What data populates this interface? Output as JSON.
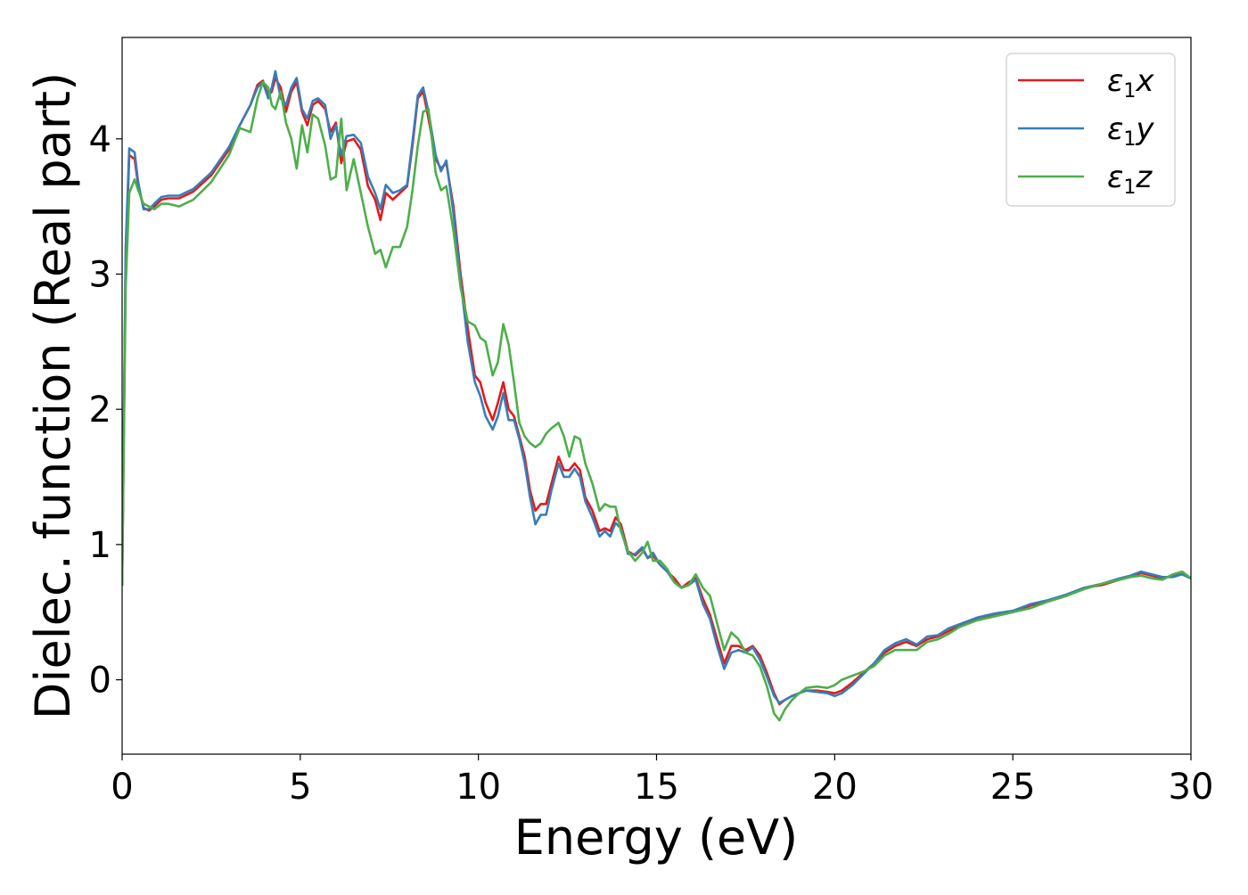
{
  "chart_data": {
    "type": "line",
    "xlabel": "Energy (eV)",
    "ylabel": "Dielec. function (Real part)",
    "xlim": [
      0,
      30
    ],
    "ylim": [
      -0.55,
      4.75
    ],
    "xticks": [
      0,
      5,
      10,
      15,
      20,
      25,
      30
    ],
    "yticks": [
      0,
      1,
      2,
      3,
      4
    ],
    "grid": false,
    "legend_position": "top-right",
    "series": [
      {
        "name": "ε1x",
        "legend": {
          "base": "ε",
          "sub": "1",
          "suffix": "x"
        },
        "color": "#e41a1c",
        "x": [
          0,
          0.1,
          0.2,
          0.35,
          0.45,
          0.6,
          0.75,
          0.9,
          1.1,
          1.3,
          1.6,
          2.0,
          2.5,
          3.0,
          3.3,
          3.6,
          3.8,
          3.95,
          4.1,
          4.2,
          4.3,
          4.45,
          4.6,
          4.75,
          4.9,
          5.05,
          5.2,
          5.35,
          5.5,
          5.7,
          5.85,
          6.0,
          6.15,
          6.3,
          6.5,
          6.7,
          6.9,
          7.1,
          7.25,
          7.4,
          7.6,
          7.8,
          8.0,
          8.15,
          8.3,
          8.45,
          8.6,
          8.8,
          8.95,
          9.1,
          9.3,
          9.5,
          9.7,
          9.9,
          10.05,
          10.2,
          10.4,
          10.55,
          10.7,
          10.85,
          11.0,
          11.15,
          11.3,
          11.45,
          11.6,
          11.75,
          11.9,
          12.05,
          12.25,
          12.4,
          12.55,
          12.7,
          12.85,
          13.0,
          13.2,
          13.4,
          13.55,
          13.7,
          13.85,
          14.0,
          14.2,
          14.4,
          14.6,
          14.75,
          14.9,
          15.1,
          15.3,
          15.5,
          15.7,
          15.9,
          16.1,
          16.3,
          16.5,
          16.7,
          16.9,
          17.1,
          17.3,
          17.5,
          17.7,
          17.9,
          18.1,
          18.3,
          18.45,
          18.6,
          18.8,
          19.0,
          19.2,
          19.5,
          19.8,
          20.0,
          20.2,
          20.5,
          20.8,
          21.1,
          21.4,
          21.7,
          22.0,
          22.3,
          22.6,
          22.9,
          23.2,
          23.5,
          24.0,
          24.5,
          25.0,
          25.5,
          26.0,
          26.5,
          27.0,
          27.5,
          28.0,
          28.3,
          28.6,
          28.9,
          29.2,
          29.5,
          29.75,
          30.0
        ],
        "values": [
          0.7,
          3.1,
          3.88,
          3.85,
          3.66,
          3.49,
          3.47,
          3.5,
          3.55,
          3.56,
          3.56,
          3.61,
          3.73,
          3.92,
          4.1,
          4.25,
          4.4,
          4.43,
          4.32,
          4.35,
          4.45,
          4.38,
          4.2,
          4.35,
          4.42,
          4.2,
          4.1,
          4.25,
          4.28,
          4.22,
          4.05,
          4.12,
          3.82,
          3.98,
          4.0,
          3.92,
          3.65,
          3.55,
          3.4,
          3.6,
          3.55,
          3.6,
          3.65,
          3.95,
          4.3,
          4.35,
          4.15,
          3.85,
          3.78,
          3.82,
          3.5,
          3.0,
          2.6,
          2.25,
          2.2,
          2.05,
          1.92,
          2.05,
          2.2,
          2.0,
          1.95,
          1.8,
          1.65,
          1.4,
          1.25,
          1.3,
          1.3,
          1.45,
          1.65,
          1.55,
          1.55,
          1.6,
          1.55,
          1.35,
          1.25,
          1.1,
          1.12,
          1.1,
          1.2,
          1.15,
          0.95,
          0.92,
          0.97,
          0.9,
          0.92,
          0.85,
          0.8,
          0.75,
          0.68,
          0.72,
          0.75,
          0.6,
          0.48,
          0.3,
          0.12,
          0.25,
          0.25,
          0.22,
          0.25,
          0.18,
          0.05,
          -0.1,
          -0.18,
          -0.15,
          -0.12,
          -0.1,
          -0.08,
          -0.08,
          -0.09,
          -0.1,
          -0.08,
          -0.02,
          0.05,
          0.12,
          0.2,
          0.25,
          0.28,
          0.25,
          0.3,
          0.32,
          0.36,
          0.4,
          0.45,
          0.48,
          0.5,
          0.55,
          0.58,
          0.62,
          0.68,
          0.7,
          0.74,
          0.76,
          0.79,
          0.77,
          0.75,
          0.77,
          0.78,
          0.75
        ],
        "values_note": null
      },
      {
        "name": "ε1y",
        "legend": {
          "base": "ε",
          "sub": "1",
          "suffix": "y"
        },
        "color": "#377eb8",
        "x": [
          0,
          0.1,
          0.2,
          0.35,
          0.45,
          0.6,
          0.75,
          0.9,
          1.1,
          1.3,
          1.6,
          2.0,
          2.5,
          3.0,
          3.3,
          3.6,
          3.8,
          3.95,
          4.1,
          4.2,
          4.3,
          4.45,
          4.6,
          4.75,
          4.9,
          5.05,
          5.2,
          5.35,
          5.5,
          5.7,
          5.85,
          6.0,
          6.15,
          6.3,
          6.5,
          6.7,
          6.9,
          7.1,
          7.25,
          7.4,
          7.6,
          7.8,
          8.0,
          8.15,
          8.3,
          8.45,
          8.6,
          8.8,
          8.95,
          9.1,
          9.3,
          9.5,
          9.7,
          9.9,
          10.05,
          10.2,
          10.4,
          10.55,
          10.7,
          10.85,
          11.0,
          11.15,
          11.3,
          11.45,
          11.6,
          11.75,
          11.9,
          12.05,
          12.25,
          12.4,
          12.55,
          12.7,
          12.85,
          13.0,
          13.2,
          13.4,
          13.55,
          13.7,
          13.85,
          14.0,
          14.2,
          14.4,
          14.6,
          14.75,
          14.9,
          15.1,
          15.3,
          15.5,
          15.7,
          15.9,
          16.1,
          16.3,
          16.5,
          16.7,
          16.9,
          17.1,
          17.3,
          17.5,
          17.7,
          17.9,
          18.1,
          18.3,
          18.45,
          18.6,
          18.8,
          19.0,
          19.2,
          19.5,
          19.8,
          20.0,
          20.2,
          20.5,
          20.8,
          21.1,
          21.4,
          21.7,
          22.0,
          22.3,
          22.6,
          22.9,
          23.2,
          23.5,
          24.0,
          24.5,
          25.0,
          25.5,
          26.0,
          26.5,
          27.0,
          27.5,
          28.0,
          28.3,
          28.6,
          28.9,
          29.2,
          29.5,
          29.75,
          30.0
        ],
        "values": [
          0.7,
          3.2,
          3.93,
          3.9,
          3.68,
          3.48,
          3.48,
          3.52,
          3.57,
          3.58,
          3.58,
          3.63,
          3.75,
          3.94,
          4.1,
          4.25,
          4.38,
          4.42,
          4.3,
          4.38,
          4.5,
          4.3,
          4.25,
          4.38,
          4.45,
          4.22,
          4.15,
          4.28,
          4.3,
          4.25,
          4.0,
          4.1,
          3.88,
          4.02,
          4.03,
          3.97,
          3.72,
          3.6,
          3.48,
          3.66,
          3.6,
          3.62,
          3.66,
          3.98,
          4.32,
          4.38,
          4.2,
          3.88,
          3.76,
          3.84,
          3.45,
          2.95,
          2.5,
          2.2,
          2.1,
          1.95,
          1.85,
          1.95,
          2.12,
          1.92,
          1.92,
          1.78,
          1.6,
          1.35,
          1.15,
          1.22,
          1.22,
          1.4,
          1.6,
          1.5,
          1.5,
          1.56,
          1.5,
          1.32,
          1.2,
          1.06,
          1.1,
          1.06,
          1.16,
          1.12,
          0.93,
          0.93,
          0.98,
          0.9,
          0.94,
          0.85,
          0.8,
          0.72,
          0.68,
          0.7,
          0.74,
          0.56,
          0.45,
          0.25,
          0.08,
          0.2,
          0.22,
          0.2,
          0.24,
          0.15,
          0.02,
          -0.12,
          -0.17,
          -0.15,
          -0.12,
          -0.1,
          -0.08,
          -0.09,
          -0.1,
          -0.12,
          -0.1,
          -0.04,
          0.04,
          0.12,
          0.22,
          0.27,
          0.3,
          0.26,
          0.32,
          0.33,
          0.38,
          0.41,
          0.46,
          0.49,
          0.51,
          0.56,
          0.59,
          0.63,
          0.68,
          0.71,
          0.75,
          0.77,
          0.8,
          0.78,
          0.76,
          0.76,
          0.78,
          0.75
        ],
        "values_note": null
      },
      {
        "name": "ε1z",
        "legend": {
          "base": "ε",
          "sub": "1",
          "suffix": "z"
        },
        "color": "#4daf4a",
        "x": [
          0,
          0.1,
          0.2,
          0.35,
          0.45,
          0.6,
          0.75,
          0.9,
          1.1,
          1.3,
          1.6,
          2.0,
          2.5,
          3.0,
          3.3,
          3.6,
          3.8,
          3.95,
          4.1,
          4.2,
          4.3,
          4.45,
          4.6,
          4.75,
          4.9,
          5.05,
          5.2,
          5.35,
          5.5,
          5.7,
          5.85,
          6.0,
          6.15,
          6.3,
          6.5,
          6.7,
          6.9,
          7.1,
          7.25,
          7.4,
          7.6,
          7.8,
          8.0,
          8.15,
          8.3,
          8.45,
          8.6,
          8.8,
          8.95,
          9.1,
          9.3,
          9.5,
          9.7,
          9.9,
          10.05,
          10.2,
          10.4,
          10.55,
          10.7,
          10.85,
          11.0,
          11.15,
          11.3,
          11.45,
          11.6,
          11.75,
          11.9,
          12.05,
          12.25,
          12.4,
          12.55,
          12.7,
          12.85,
          13.0,
          13.2,
          13.4,
          13.55,
          13.7,
          13.85,
          14.0,
          14.2,
          14.4,
          14.6,
          14.75,
          14.9,
          15.1,
          15.3,
          15.5,
          15.7,
          15.9,
          16.1,
          16.3,
          16.5,
          16.7,
          16.9,
          17.1,
          17.3,
          17.5,
          17.7,
          17.9,
          18.1,
          18.3,
          18.45,
          18.6,
          18.8,
          19.0,
          19.2,
          19.5,
          19.8,
          20.0,
          20.2,
          20.5,
          20.8,
          21.1,
          21.4,
          21.7,
          22.0,
          22.3,
          22.6,
          22.9,
          23.2,
          23.5,
          24.0,
          24.5,
          25.0,
          25.5,
          26.0,
          26.5,
          27.0,
          27.5,
          28.0,
          28.3,
          28.6,
          28.9,
          29.2,
          29.5,
          29.75,
          30.0
        ],
        "values": [
          0.7,
          2.9,
          3.6,
          3.7,
          3.62,
          3.52,
          3.5,
          3.48,
          3.52,
          3.52,
          3.5,
          3.55,
          3.68,
          3.88,
          4.08,
          4.05,
          4.3,
          4.42,
          4.38,
          4.25,
          4.22,
          4.35,
          4.12,
          4.0,
          3.78,
          4.1,
          3.9,
          4.18,
          4.15,
          3.95,
          3.7,
          3.72,
          4.15,
          3.62,
          3.85,
          3.6,
          3.35,
          3.15,
          3.18,
          3.05,
          3.2,
          3.2,
          3.35,
          3.62,
          3.95,
          4.2,
          4.22,
          3.75,
          3.62,
          3.65,
          3.32,
          2.9,
          2.65,
          2.62,
          2.53,
          2.5,
          2.25,
          2.35,
          2.63,
          2.48,
          2.2,
          1.9,
          1.8,
          1.75,
          1.72,
          1.75,
          1.82,
          1.86,
          1.9,
          1.8,
          1.65,
          1.8,
          1.78,
          1.6,
          1.45,
          1.25,
          1.3,
          1.28,
          1.28,
          1.1,
          0.95,
          0.88,
          0.94,
          1.02,
          0.88,
          0.88,
          0.82,
          0.72,
          0.68,
          0.7,
          0.78,
          0.68,
          0.62,
          0.42,
          0.22,
          0.35,
          0.3,
          0.2,
          0.18,
          0.1,
          -0.05,
          -0.25,
          -0.3,
          -0.22,
          -0.15,
          -0.1,
          -0.06,
          -0.05,
          -0.06,
          -0.04,
          0.0,
          0.03,
          0.06,
          0.1,
          0.18,
          0.22,
          0.22,
          0.22,
          0.28,
          0.3,
          0.34,
          0.39,
          0.44,
          0.47,
          0.5,
          0.53,
          0.58,
          0.62,
          0.67,
          0.71,
          0.74,
          0.76,
          0.77,
          0.75,
          0.74,
          0.78,
          0.8,
          0.75
        ],
        "values_note": null
      }
    ]
  }
}
